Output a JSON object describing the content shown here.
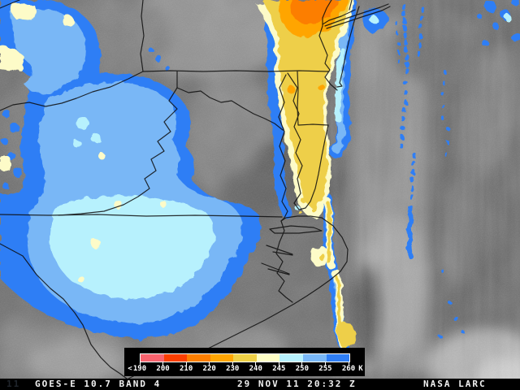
{
  "status_bar": {
    "corner_text": "11",
    "product": "GOES-E 10.7 BAND 4",
    "timestamp": "29 NOV 11 20:32 Z",
    "source": "NASA LARC"
  },
  "legend": {
    "prefix": "<",
    "unit": "K",
    "tick_labels": [
      "190",
      "200",
      "210",
      "220",
      "230",
      "240",
      "245",
      "250",
      "255",
      "260"
    ],
    "colors": [
      "#f8636e",
      "#fb3e00",
      "#fc7e00",
      "#ffa502",
      "#efd046",
      "#fdfdc5",
      "#b7f1fd",
      "#79b7f6",
      "#2f7ef5"
    ]
  },
  "palette": {
    "blue": "#2f7ef5",
    "light_blue": "#79b7f6",
    "pale_cyan": "#b7f1fd",
    "pale_yellow": "#fdfbc8",
    "gold": "#eecf48",
    "amber": "#ffa502",
    "orange": "#fc7e00",
    "coral": "#f8636e",
    "base_gray": "#6e6e6e",
    "line_black": "#0d0d0d",
    "bar_black": "#000000",
    "text_white": "#f2f2f2"
  }
}
